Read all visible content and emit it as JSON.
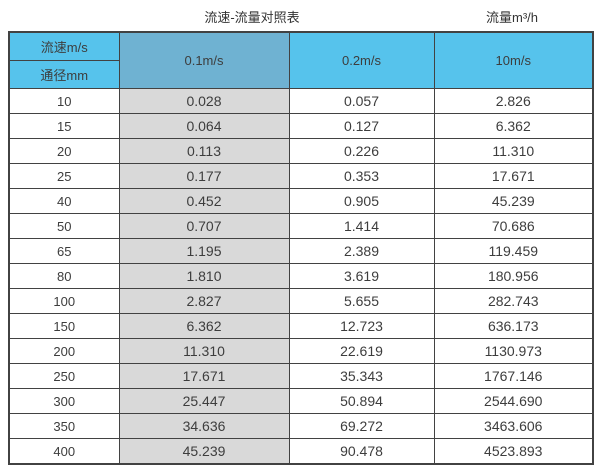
{
  "titles": {
    "main": "流速-流量对照表",
    "unit": "流量m³/h"
  },
  "table": {
    "corner_top": "流速m/s",
    "corner_bottom": "通径mm",
    "columns": [
      "0.1m/s",
      "0.2m/s",
      "10m/s"
    ],
    "rows": [
      [
        "10",
        "0.028",
        "0.057",
        "2.826"
      ],
      [
        "15",
        "0.064",
        "0.127",
        "6.362"
      ],
      [
        "20",
        "0.113",
        "0.226",
        "11.310"
      ],
      [
        "25",
        "0.177",
        "0.353",
        "17.671"
      ],
      [
        "40",
        "0.452",
        "0.905",
        "45.239"
      ],
      [
        "50",
        "0.707",
        "1.414",
        "70.686"
      ],
      [
        "65",
        "1.195",
        "2.389",
        "119.459"
      ],
      [
        "80",
        "1.810",
        "3.619",
        "180.956"
      ],
      [
        "100",
        "2.827",
        "5.655",
        "282.743"
      ],
      [
        "150",
        "6.362",
        "12.723",
        "636.173"
      ],
      [
        "200",
        "11.310",
        "22.619",
        "1130.973"
      ],
      [
        "250",
        "17.671",
        "35.343",
        "1767.146"
      ],
      [
        "300",
        "25.447",
        "50.894",
        "2544.690"
      ],
      [
        "350",
        "34.636",
        "69.272",
        "3463.606"
      ],
      [
        "400",
        "45.239",
        "90.478",
        "4523.893"
      ]
    ]
  },
  "colors": {
    "header_blue": "#56c3ec",
    "header_blue_dark": "#6fb2d2",
    "shaded_column": "#d9d9d9",
    "border": "#424242",
    "text": "#3d3d3d"
  }
}
